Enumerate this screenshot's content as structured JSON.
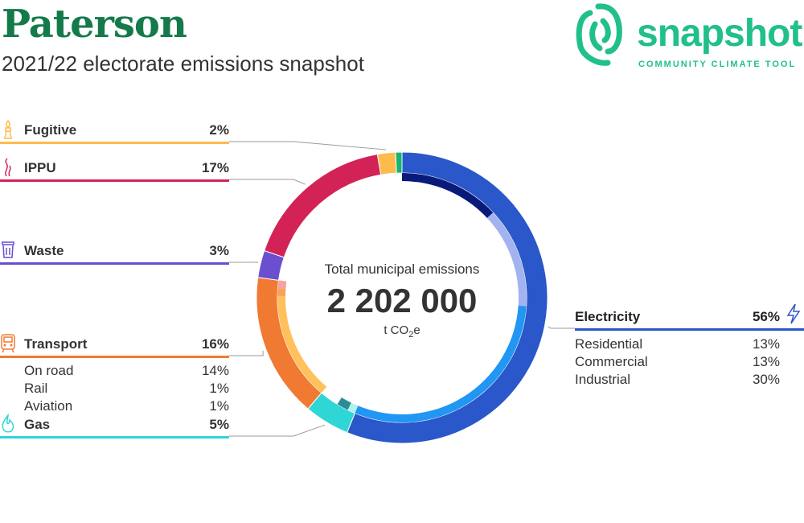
{
  "header": {
    "title": "Paterson",
    "subtitle": "2021/22 electorate emissions snapshot"
  },
  "logo": {
    "word": "snapshot",
    "tagline": "COMMUNITY CLIMATE TOOL",
    "color": "#21c08b"
  },
  "center": {
    "label": "Total municipal emissions",
    "value": "2 202 000",
    "unit_prefix": "t CO",
    "unit_sub": "2",
    "unit_suffix": "e"
  },
  "chart_data": {
    "type": "pie",
    "subtype": "donut",
    "total": "2 202 000",
    "categories": [
      {
        "name": "Electricity",
        "value": 56,
        "label": "56%",
        "color": "#2a57c9",
        "icon": "lightning-icon",
        "subcategories": [
          {
            "name": "Residential",
            "value": 13,
            "label": "13%",
            "color": "#0a1a7a"
          },
          {
            "name": "Commercial",
            "value": 13,
            "label": "13%",
            "color": "#a3b3f0"
          },
          {
            "name": "Industrial",
            "value": 30,
            "label": "30%",
            "color": "#2196f3"
          }
        ]
      },
      {
        "name": "Gas",
        "value": 5,
        "label": "5%",
        "color": "#2fd6d6",
        "icon": "flame-icon",
        "subcategories": [
          {
            "name": "",
            "value": 1,
            "label": "",
            "color": "#b3f1f1"
          },
          {
            "name": "",
            "value": 1.5,
            "label": "",
            "color": "#2b8c99"
          }
        ]
      },
      {
        "name": "Transport",
        "value": 16,
        "label": "16%",
        "color": "#f07a32",
        "icon": "train-icon",
        "subcategories": [
          {
            "name": "On road",
            "value": 14,
            "label": "14%",
            "color": "#ffc15c"
          },
          {
            "name": "Rail",
            "value": 1,
            "label": "1%",
            "color": "#f7a35c"
          },
          {
            "name": "Aviation",
            "value": 1,
            "label": "1%",
            "color": "#f7a1a1"
          }
        ]
      },
      {
        "name": "Waste",
        "value": 3,
        "label": "3%",
        "color": "#6a4fcf",
        "icon": "trash-icon",
        "subcategories": []
      },
      {
        "name": "IPPU",
        "value": 17,
        "label": "17%",
        "color": "#d32356",
        "icon": "smoke-icon",
        "subcategories": []
      },
      {
        "name": "Fugitive",
        "value": 2,
        "label": "2%",
        "color": "#fdbb4d",
        "icon": "gas-flare-icon",
        "subcategories": []
      },
      {
        "name": "",
        "value": 0.7,
        "label": "",
        "color": "#16b46e",
        "subcategories": []
      }
    ]
  }
}
